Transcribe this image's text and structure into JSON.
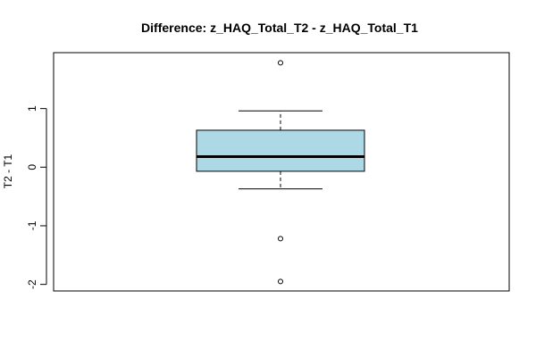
{
  "chart_data": {
    "type": "box",
    "title": "Difference: z_HAQ_Total_T2 - z_HAQ_Total_T1",
    "xlabel": "",
    "ylabel": "T2 - T1",
    "ylim": [
      -2.1,
      1.9
    ],
    "yticks": [
      -2,
      -1,
      0,
      1
    ],
    "ytick_labels": [
      "-2",
      "-1",
      "0",
      "1"
    ],
    "grid": false,
    "legend": "none",
    "box": {
      "whisker_low": -0.37,
      "q1": -0.07,
      "median": 0.18,
      "q3": 0.63,
      "whisker_high": 0.96,
      "outliers": [
        1.78,
        -1.22,
        -1.95
      ]
    },
    "colors": {
      "box_fill": "#add8e6",
      "stroke": "#000000"
    }
  }
}
